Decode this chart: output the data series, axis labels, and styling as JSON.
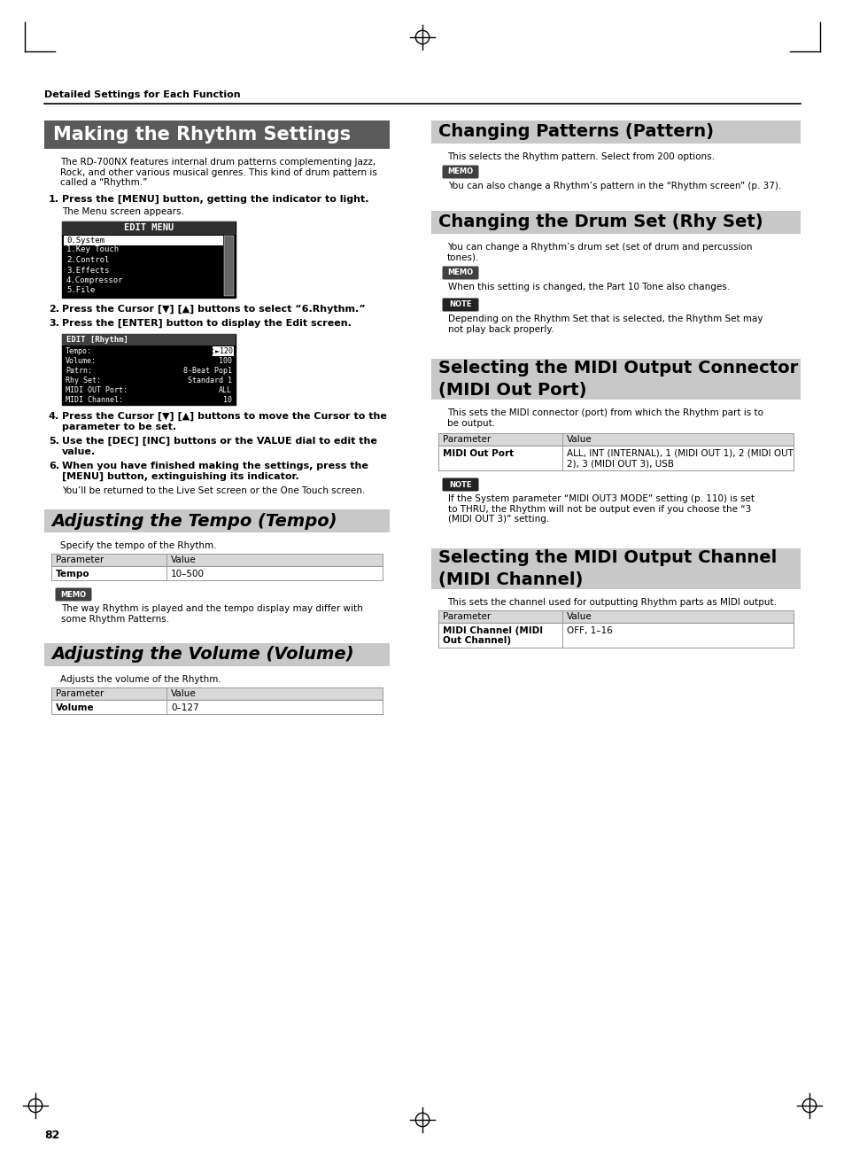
{
  "page_bg": "#ffffff",
  "header_text": "Detailed Settings for Each Function",
  "page_number": "82",
  "sections": {
    "making_rhythm": {
      "title": "Making the Rhythm Settings",
      "title_bg": "#5a5a5a",
      "title_color": "#ffffff",
      "body": "The RD-700NX features internal drum patterns complementing Jazz,\nRock, and other various musical genres. This kind of drum pattern is\ncalled a “Rhythm.”",
      "edit_menu": {
        "title": "EDIT MENU",
        "items": [
          "0.System",
          "1.Key Touch",
          "2.Control",
          "3.Effects",
          "4.Compressor",
          "5.File"
        ]
      },
      "edit_rhythm": {
        "title": "EDIT [Rhythm]",
        "items_left": [
          "Tempo:",
          "Volume:",
          "Patrn:",
          "Rhy Set:",
          "MIDI OUT Port:",
          "MIDI Channel:"
        ],
        "items_right": [
          "J:120",
          "100",
          "8-Beat Pop1",
          "Standard 1",
          "ALL",
          "10"
        ],
        "highlight_idx": 0
      }
    },
    "tempo": {
      "title": "Adjusting the Tempo (Tempo)",
      "title_bg": "#c8c8c8",
      "title_color": "#000000",
      "desc": "Specify the tempo of the Rhythm.",
      "table_header": [
        "Parameter",
        "Value"
      ],
      "table_rows": [
        [
          "Tempo",
          "10–500"
        ]
      ],
      "memo_text": "The way Rhythm is played and the tempo display may differ with\nsome Rhythm Patterns."
    },
    "volume": {
      "title": "Adjusting the Volume (Volume)",
      "title_bg": "#c8c8c8",
      "title_color": "#000000",
      "desc": "Adjusts the volume of the Rhythm.",
      "table_header": [
        "Parameter",
        "Value"
      ],
      "table_rows": [
        [
          "Volume",
          "0–127"
        ]
      ]
    },
    "pattern": {
      "title": "Changing Patterns (Pattern)",
      "title_bg": "#c8c8c8",
      "title_color": "#000000",
      "desc": "This selects the Rhythm pattern. Select from 200 options.",
      "memo_text": "You can also change a Rhythm’s pattern in the “Rhythm screen” (p. 37)."
    },
    "rhyset": {
      "title": "Changing the Drum Set (Rhy Set)",
      "title_bg": "#c8c8c8",
      "title_color": "#000000",
      "desc": "You can change a Rhythm’s drum set (set of drum and percussion\ntones).",
      "memo_text": "When this setting is changed, the Part 10 Tone also changes.",
      "note_text": "Depending on the Rhythm Set that is selected, the Rhythm Set may\nnot play back properly."
    },
    "midi_out_port": {
      "title": "Selecting the MIDI Output Connector\n(MIDI Out Port)",
      "title_bg": "#c8c8c8",
      "title_color": "#000000",
      "desc": "This sets the MIDI connector (port) from which the Rhythm part is to\nbe output.",
      "table_header": [
        "Parameter",
        "Value"
      ],
      "table_rows": [
        [
          "MIDI Out Port",
          "ALL, INT (INTERNAL), 1 (MIDI OUT 1), 2 (MIDI OUT\n2), 3 (MIDI OUT 3), USB"
        ]
      ],
      "note_text": "If the System parameter “MIDI OUT3 MODE” setting (p. 110) is set\nto THRU, the Rhythm will not be output even if you choose the “3\n(MIDI OUT 3)” setting."
    },
    "midi_channel": {
      "title": "Selecting the MIDI Output Channel\n(MIDI Channel)",
      "title_bg": "#c8c8c8",
      "title_color": "#000000",
      "desc": "This sets the channel used for outputting Rhythm parts as MIDI output.",
      "table_header": [
        "Parameter",
        "Value"
      ],
      "table_rows": [
        [
          "MIDI Channel (MIDI\nOut Channel)",
          "OFF, 1–16"
        ]
      ]
    }
  }
}
